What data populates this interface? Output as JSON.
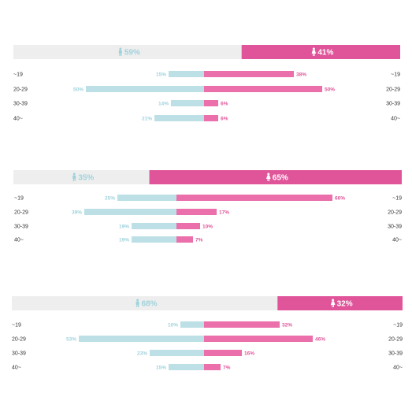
{
  "colors": {
    "male": "#bde0e6",
    "female": "#e0559a",
    "male_text": "#9fd3dc",
    "female_text": "#e0559a",
    "header_male_bg": "#eeeeee",
    "header_female_bg": "#e0559a",
    "header_female_text": "#ffffff",
    "female_bar": "#ea6fab"
  },
  "chart_data": [
    {
      "type": "bar",
      "orientation": "horizontal-diverging",
      "summary": {
        "male_pct": "59%",
        "female_pct": "41%",
        "male_share": 59,
        "female_share": 41
      },
      "categories": [
        "~19",
        "20-29",
        "30-39",
        "40~"
      ],
      "series": [
        {
          "values": [
            15,
            50,
            14,
            21
          ],
          "labels": [
            "15%",
            "50%",
            "14%",
            "21%"
          ]
        },
        {
          "values": [
            38,
            50,
            6,
            6
          ],
          "labels": [
            "38%",
            "50%",
            "6%",
            "6%"
          ]
        }
      ]
    },
    {
      "type": "bar",
      "orientation": "horizontal-diverging",
      "summary": {
        "male_pct": "35%",
        "female_pct": "65%",
        "male_share": 35,
        "female_share": 65
      },
      "categories": [
        "~19",
        "20-29",
        "30-39",
        "40~"
      ],
      "series": [
        {
          "values": [
            25,
            39,
            19,
            19
          ],
          "labels": [
            "25%",
            "39%",
            "19%",
            "19%"
          ]
        },
        {
          "values": [
            66,
            17,
            10,
            7
          ],
          "labels": [
            "66%",
            "17%",
            "10%",
            "7%"
          ]
        }
      ]
    },
    {
      "type": "bar",
      "orientation": "horizontal-diverging",
      "summary": {
        "male_pct": "68%",
        "female_pct": "32%",
        "male_share": 68,
        "female_share": 32
      },
      "categories": [
        "~19",
        "20-29",
        "30-39",
        "40~"
      ],
      "series": [
        {
          "values": [
            10,
            53,
            23,
            15
          ],
          "labels": [
            "10%",
            "53%",
            "23%",
            "15%"
          ]
        },
        {
          "values": [
            32,
            46,
            16,
            7
          ],
          "labels": [
            "32%",
            "46%",
            "16%",
            "7%"
          ]
        }
      ]
    }
  ]
}
